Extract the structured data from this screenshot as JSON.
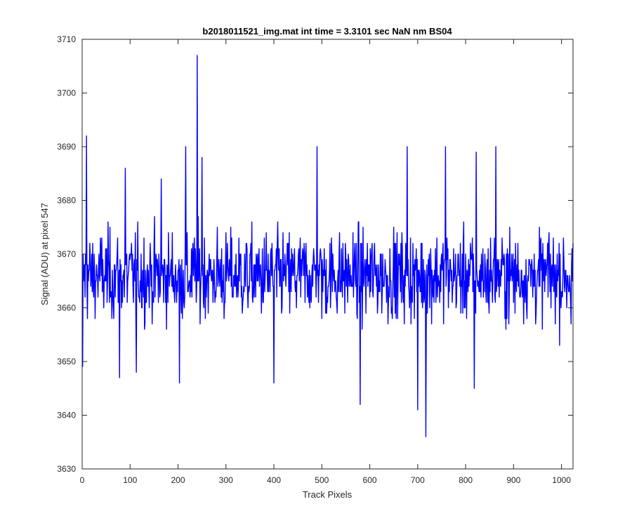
{
  "chart_data": {
    "type": "line",
    "title": "b2018011521_img.mat int time = 3.3101 sec  NaN nm BS04",
    "xlabel": "Track Pixels",
    "ylabel": "Signal (ADU) at pixel 547",
    "xlim": [
      0,
      1024
    ],
    "ylim": [
      3630,
      3710
    ],
    "xticks": [
      0,
      100,
      200,
      300,
      400,
      500,
      600,
      700,
      800,
      900,
      1000
    ],
    "yticks": [
      3630,
      3640,
      3650,
      3660,
      3670,
      3680,
      3690,
      3700,
      3710
    ],
    "grid": false,
    "legend": "none",
    "series": [
      {
        "color": "#0000ff",
        "x_start": 1,
        "x_step": 1,
        "y_approx_mean": 3666,
        "notable_points": [
          {
            "x": 1,
            "y": 3649
          },
          {
            "x": 9,
            "y": 3692
          },
          {
            "x": 78,
            "y": 3647
          },
          {
            "x": 90,
            "y": 3686
          },
          {
            "x": 113,
            "y": 3648
          },
          {
            "x": 165,
            "y": 3684
          },
          {
            "x": 203,
            "y": 3646
          },
          {
            "x": 216,
            "y": 3690
          },
          {
            "x": 240,
            "y": 3707
          },
          {
            "x": 250,
            "y": 3688
          },
          {
            "x": 400,
            "y": 3646
          },
          {
            "x": 490,
            "y": 3690
          },
          {
            "x": 580,
            "y": 3642
          },
          {
            "x": 678,
            "y": 3690
          },
          {
            "x": 700,
            "y": 3641
          },
          {
            "x": 717,
            "y": 3636
          },
          {
            "x": 758,
            "y": 3690
          },
          {
            "x": 818,
            "y": 3645
          },
          {
            "x": 822,
            "y": 3689
          },
          {
            "x": 863,
            "y": 3690
          },
          {
            "x": 1020,
            "y": 3657
          }
        ]
      }
    ]
  }
}
